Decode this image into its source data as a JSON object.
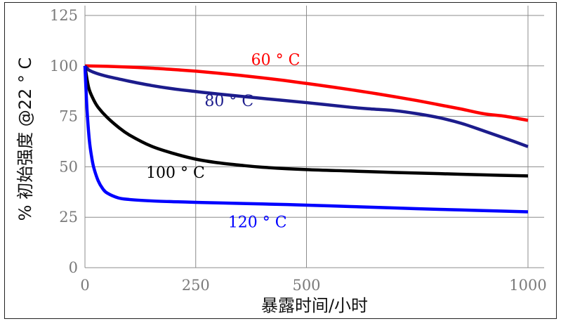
{
  "chart_data": {
    "type": "line",
    "title": "",
    "xlabel": "暴露时间/小时",
    "ylabel": "% 初始强度  @22 ° C",
    "xlim": [
      0,
      1000
    ],
    "ylim": [
      0,
      125
    ],
    "xticks": [
      "0",
      "250",
      "500",
      "1000"
    ],
    "xtick_values": [
      0,
      250,
      500,
      1000
    ],
    "yticks": [
      "0",
      "25",
      "50",
      "75",
      "100",
      "125"
    ],
    "ytick_values": [
      0,
      25,
      50,
      75,
      100,
      125
    ],
    "grid": true,
    "series": [
      {
        "name": "60 ° C",
        "color": "#ff0000",
        "x": [
          0,
          50,
          100,
          150,
          200,
          250,
          300,
          350,
          400,
          450,
          500,
          550,
          600,
          650,
          700,
          750,
          800,
          850,
          900,
          950,
          1000
        ],
        "y": [
          100,
          99.8,
          99.4,
          98.9,
          98.2,
          97.4,
          96.4,
          95.3,
          94.1,
          92.8,
          91.3,
          89.8,
          88.2,
          86.5,
          84.7,
          82.8,
          80.7,
          78.6,
          76.3,
          75.0,
          73
        ]
      },
      {
        "name": "80 ° C",
        "color": "#1c1c8c",
        "x": [
          0,
          5,
          10,
          25,
          50,
          75,
          100,
          150,
          200,
          250,
          300,
          400,
          500,
          600,
          650,
          700,
          750,
          800,
          850,
          900,
          950,
          1000
        ],
        "y": [
          100,
          98.8,
          97.8,
          96.4,
          94.8,
          93.6,
          92.4,
          90.3,
          88.6,
          87.3,
          86.1,
          83.9,
          81.8,
          79.5,
          78.6,
          77.8,
          76.3,
          74.3,
          71.5,
          67.8,
          64,
          60
        ]
      },
      {
        "name": "100 ° C",
        "color": "#000000",
        "x": [
          0,
          5,
          10,
          20,
          30,
          50,
          75,
          100,
          150,
          200,
          250,
          300,
          350,
          400,
          500,
          600,
          700,
          800,
          900,
          1000
        ],
        "y": [
          100,
          93,
          88,
          83,
          79.4,
          74.5,
          69.7,
          65.8,
          60.2,
          56.6,
          53.8,
          52,
          50.8,
          49.8,
          48.6,
          47.9,
          47.2,
          46.6,
          46,
          45.5
        ]
      },
      {
        "name": "120 ° C",
        "color": "#0000ff",
        "x": [
          0,
          2,
          5,
          10,
          15,
          20,
          30,
          40,
          50,
          75,
          100,
          150,
          200,
          250,
          300,
          400,
          500,
          600,
          700,
          800,
          900,
          1000
        ],
        "y": [
          100,
          90,
          77,
          63,
          55,
          49.5,
          43,
          39.2,
          37,
          34.6,
          33.8,
          33.1,
          32.7,
          32.4,
          32.1,
          31.6,
          31,
          30.3,
          29.6,
          28.9,
          28.3,
          27.7
        ]
      }
    ],
    "annotations": [
      {
        "text": "60 ° C",
        "series": "60 ° C",
        "x": 375,
        "y": 100.5
      },
      {
        "text": "80 ° C",
        "series": "80 ° C",
        "x": 270,
        "y": 80
      },
      {
        "text": "100 ° C",
        "series": "100 ° C",
        "x": 138,
        "y": 44.5
      },
      {
        "text": "120 ° C",
        "series": "120 ° C",
        "x": 323,
        "y": 20
      }
    ]
  }
}
